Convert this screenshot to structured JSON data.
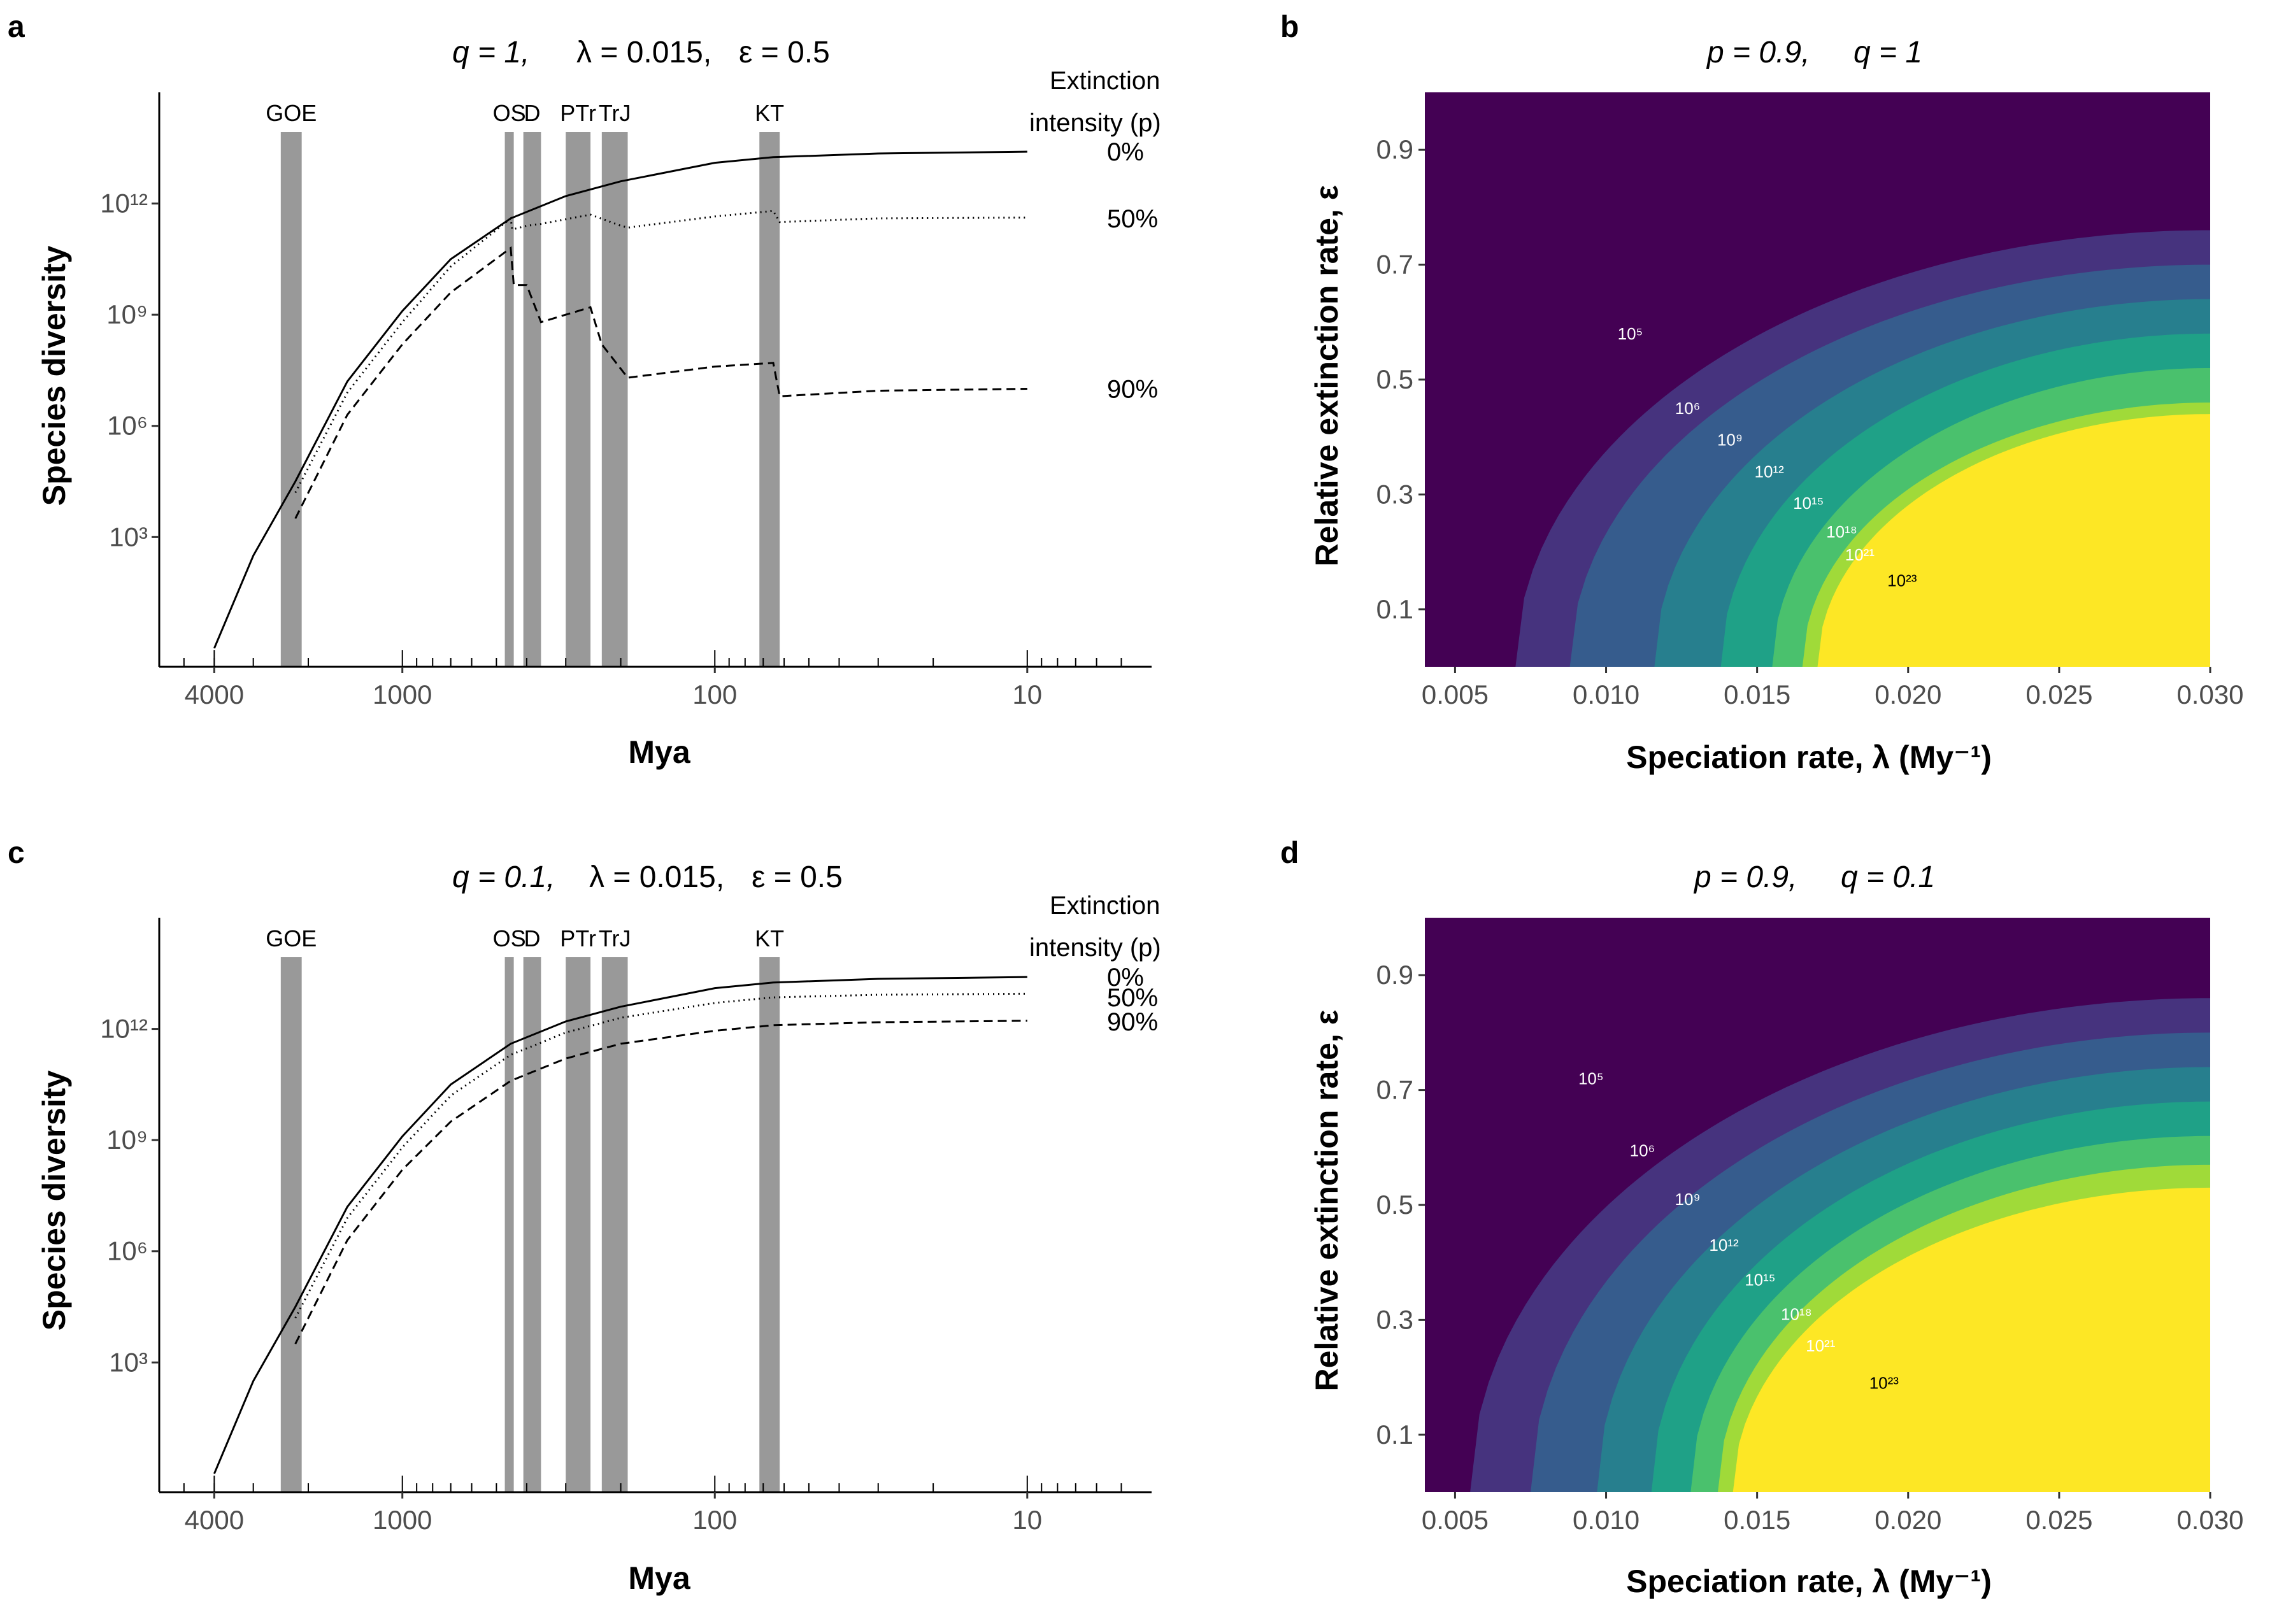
{
  "figure": {
    "panels": [
      {
        "letter": "a",
        "title_parts": {
          "q": "q = 1,",
          "lambda": "λ = 0.015,",
          "eps": "ε = 0.5"
        },
        "xlabel": "Mya",
        "ylabel": "Species diversity",
        "legend_title_line1": "Extinction",
        "legend_title_line2": "intensity (p)"
      },
      {
        "letter": "b",
        "title_parts": {
          "p": "p = 0.9,",
          "q": "q = 1"
        },
        "xlabel": "Speciation rate, λ (My⁻¹)",
        "ylabel": "Relative extinction rate, ε"
      },
      {
        "letter": "c",
        "title_parts": {
          "q": "q = 0.1,",
          "lambda": "λ = 0.015,",
          "eps": "ε = 0.5"
        },
        "xlabel": "Mya",
        "ylabel": "Species diversity",
        "legend_title_line1": "Extinction",
        "legend_title_line2": "intensity (p)"
      },
      {
        "letter": "d",
        "title_parts": {
          "p": "p = 0.9,",
          "q": "q = 0.1"
        },
        "xlabel": "Speciation rate, λ (My⁻¹)",
        "ylabel": "Relative extinction rate, ε"
      }
    ]
  },
  "chart_data": [
    {
      "panel": "a",
      "type": "line",
      "x_scale": "log-reversed",
      "xlim": [
        6000,
        4
      ],
      "x_ticks": [
        4000,
        1000,
        100,
        10
      ],
      "y_scale": "log",
      "ylim_log10": [
        -0.5,
        15
      ],
      "y_ticks": [
        {
          "exp": 3,
          "label": "10³"
        },
        {
          "exp": 6,
          "label": "10⁶"
        },
        {
          "exp": 9,
          "label": "10⁹"
        },
        {
          "exp": 12,
          "label": "10¹²"
        }
      ],
      "events": [
        {
          "name": "GOE",
          "from": 2450,
          "to": 2100
        },
        {
          "name": "OS",
          "from": 470,
          "to": 440
        },
        {
          "name": "D",
          "from": 410,
          "to": 360
        },
        {
          "name": "PTr",
          "from": 300,
          "to": 250
        },
        {
          "name": "TrJ",
          "from": 230,
          "to": 190
        },
        {
          "name": "KT",
          "from": 72,
          "to": 62
        }
      ],
      "series": [
        {
          "name": "0%",
          "style": "solid",
          "x": [
            4000,
            3000,
            2200,
            1500,
            1000,
            700,
            450,
            300,
            200,
            100,
            65,
            30,
            10
          ],
          "y_log10": [
            0,
            2.5,
            4.5,
            7.2,
            9.1,
            10.5,
            11.6,
            12.2,
            12.6,
            13.1,
            13.25,
            13.35,
            13.4
          ]
        },
        {
          "name": "50%",
          "style": "dotted",
          "x": [
            2200,
            1500,
            1000,
            700,
            450,
            445,
            400,
            360,
            250,
            200,
            190,
            100,
            65,
            62,
            30,
            10
          ],
          "y_log10": [
            4.2,
            6.9,
            8.8,
            10.3,
            11.6,
            11.3,
            11.4,
            11.45,
            11.7,
            11.4,
            11.35,
            11.65,
            11.8,
            11.5,
            11.6,
            11.62
          ]
        },
        {
          "name": "90%",
          "style": "dashed",
          "x": [
            2200,
            1500,
            1000,
            700,
            450,
            440,
            400,
            360,
            250,
            230,
            190,
            100,
            65,
            62,
            30,
            10
          ],
          "y_log10": [
            3.5,
            6.3,
            8.2,
            9.6,
            10.8,
            9.8,
            9.8,
            8.8,
            9.2,
            8.2,
            7.3,
            7.6,
            7.7,
            6.8,
            6.95,
            7.0
          ]
        }
      ],
      "end_labels": [
        {
          "label": "0%",
          "y_log10": 13.4
        },
        {
          "label": "50%",
          "y_log10": 11.6
        },
        {
          "label": "90%",
          "y_log10": 7.0
        }
      ]
    },
    {
      "panel": "b",
      "type": "heatmap",
      "xlim": [
        0.004,
        0.03
      ],
      "x_ticks": [
        0.005,
        0.01,
        0.015,
        0.02,
        0.025,
        0.03
      ],
      "x_tick_labels": [
        "0.005",
        "0.010",
        "0.015",
        "0.020",
        "0.025",
        "0.030"
      ],
      "ylim": [
        0,
        1
      ],
      "y_ticks": [
        0.1,
        0.3,
        0.5,
        0.7,
        0.9
      ],
      "y_tick_labels": [
        "0.1",
        "0.3",
        "0.5",
        "0.7",
        "0.9"
      ],
      "band_colors": [
        "#440154",
        "#46337e",
        "#365c8d",
        "#277f8e",
        "#1fa187",
        "#4ac16d",
        "#a0da39",
        "#fde725"
      ],
      "boundary_eps_at_max_lambda": [
        0.76,
        0.7,
        0.64,
        0.58,
        0.52,
        0.46,
        0.44
      ],
      "boundary_lambda_at_zero_eps": [
        0.007,
        0.0088,
        0.0116,
        0.0138,
        0.0155,
        0.0165,
        0.017
      ],
      "contour_labels": [
        {
          "label": "10⁵",
          "x": 0.0108,
          "y": 0.57
        },
        {
          "label": "10⁶",
          "x": 0.0127,
          "y": 0.44
        },
        {
          "label": "10⁹",
          "x": 0.0141,
          "y": 0.385
        },
        {
          "label": "10¹²",
          "x": 0.0154,
          "y": 0.33
        },
        {
          "label": "10¹⁵",
          "x": 0.0167,
          "y": 0.275
        },
        {
          "label": "10¹⁸",
          "x": 0.0178,
          "y": 0.225
        },
        {
          "label": "10²¹",
          "x": 0.0184,
          "y": 0.185
        },
        {
          "label": "10²³",
          "x": 0.0198,
          "y": 0.14
        }
      ]
    },
    {
      "panel": "c",
      "type": "line",
      "x_scale": "log-reversed",
      "xlim": [
        6000,
        4
      ],
      "x_ticks": [
        4000,
        1000,
        100,
        10
      ],
      "y_scale": "log",
      "ylim_log10": [
        -0.5,
        15
      ],
      "y_ticks": [
        {
          "exp": 3,
          "label": "10³"
        },
        {
          "exp": 6,
          "label": "10⁶"
        },
        {
          "exp": 9,
          "label": "10⁹"
        },
        {
          "exp": 12,
          "label": "10¹²"
        }
      ],
      "events": [
        {
          "name": "GOE",
          "from": 2450,
          "to": 2100
        },
        {
          "name": "OS",
          "from": 470,
          "to": 440
        },
        {
          "name": "D",
          "from": 410,
          "to": 360
        },
        {
          "name": "PTr",
          "from": 300,
          "to": 250
        },
        {
          "name": "TrJ",
          "from": 230,
          "to": 190
        },
        {
          "name": "KT",
          "from": 72,
          "to": 62
        }
      ],
      "series": [
        {
          "name": "0%",
          "style": "solid",
          "x": [
            4000,
            3000,
            2200,
            1500,
            1000,
            700,
            450,
            300,
            200,
            100,
            65,
            30,
            10
          ],
          "y_log10": [
            0,
            2.5,
            4.5,
            7.2,
            9.1,
            10.5,
            11.6,
            12.2,
            12.6,
            13.1,
            13.25,
            13.35,
            13.4
          ]
        },
        {
          "name": "50%",
          "style": "dotted",
          "x": [
            2200,
            1500,
            1000,
            700,
            450,
            300,
            200,
            100,
            65,
            30,
            10
          ],
          "y_log10": [
            4.2,
            6.9,
            8.8,
            10.2,
            11.3,
            11.9,
            12.3,
            12.7,
            12.85,
            12.92,
            12.95
          ]
        },
        {
          "name": "90%",
          "style": "dashed",
          "x": [
            2200,
            1500,
            1000,
            700,
            450,
            300,
            200,
            100,
            65,
            30,
            10
          ],
          "y_log10": [
            3.5,
            6.3,
            8.2,
            9.5,
            10.6,
            11.2,
            11.6,
            11.95,
            12.1,
            12.18,
            12.22
          ]
        }
      ],
      "end_labels": [
        {
          "label": "0%",
          "y_log10": 13.4
        },
        {
          "label": "50%",
          "y_log10": 12.85
        },
        {
          "label": "90%",
          "y_log10": 12.2
        }
      ]
    },
    {
      "panel": "d",
      "type": "heatmap",
      "xlim": [
        0.004,
        0.03
      ],
      "x_ticks": [
        0.005,
        0.01,
        0.015,
        0.02,
        0.025,
        0.03
      ],
      "x_tick_labels": [
        "0.005",
        "0.010",
        "0.015",
        "0.020",
        "0.025",
        "0.030"
      ],
      "ylim": [
        0,
        1
      ],
      "y_ticks": [
        0.1,
        0.3,
        0.5,
        0.7,
        0.9
      ],
      "y_tick_labels": [
        "0.1",
        "0.3",
        "0.5",
        "0.7",
        "0.9"
      ],
      "band_colors": [
        "#440154",
        "#46337e",
        "#365c8d",
        "#277f8e",
        "#1fa187",
        "#4ac16d",
        "#a0da39",
        "#fde725"
      ],
      "boundary_eps_at_max_lambda": [
        0.86,
        0.8,
        0.74,
        0.68,
        0.62,
        0.57,
        0.53
      ],
      "boundary_lambda_at_zero_eps": [
        0.0055,
        0.0075,
        0.0097,
        0.0115,
        0.0128,
        0.0137,
        0.0142
      ],
      "contour_labels": [
        {
          "label": "10⁵",
          "x": 0.0095,
          "y": 0.71
        },
        {
          "label": "10⁶",
          "x": 0.0112,
          "y": 0.585
        },
        {
          "label": "10⁹",
          "x": 0.0127,
          "y": 0.5
        },
        {
          "label": "10¹²",
          "x": 0.0139,
          "y": 0.42
        },
        {
          "label": "10¹⁵",
          "x": 0.0151,
          "y": 0.36
        },
        {
          "label": "10¹⁸",
          "x": 0.0163,
          "y": 0.3
        },
        {
          "label": "10²¹",
          "x": 0.0171,
          "y": 0.245
        },
        {
          "label": "10²³",
          "x": 0.0192,
          "y": 0.18
        }
      ]
    }
  ]
}
